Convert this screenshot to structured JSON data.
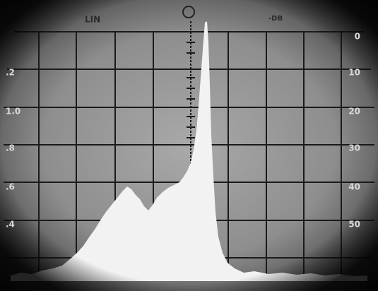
{
  "header": {
    "left_mode": "LIN",
    "right_mode": "-DB"
  },
  "left_scale": [
    ".2",
    "1.0",
    ".8",
    ".6",
    ".4"
  ],
  "right_scale": [
    "0",
    "10",
    "20",
    "30",
    "40",
    "50"
  ]
}
